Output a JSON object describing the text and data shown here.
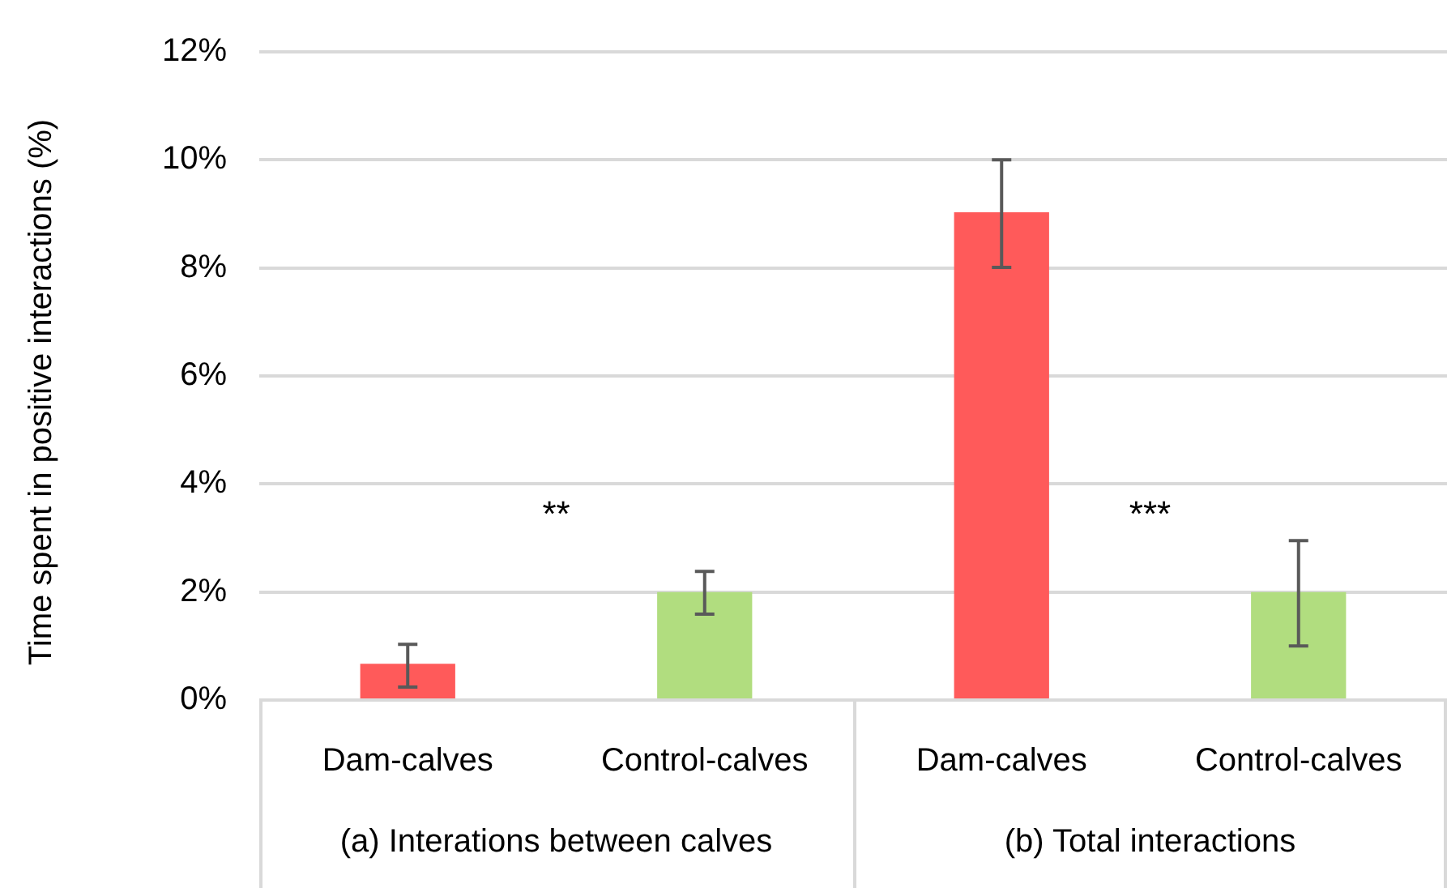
{
  "chart_data": {
    "type": "bar",
    "ylabel": "Time spent in positive interactions (%)",
    "categories": [
      "Dam-calves",
      "Control-calves",
      "Dam-calves",
      "Control-calves"
    ],
    "values": [
      0.67,
      2.0,
      9.03,
      2.0
    ],
    "colors": [
      "#ff5a5a",
      "#b1dd7f",
      "#ff5a5a",
      "#b1dd7f"
    ],
    "errors": [
      [
        0.24,
        1.03
      ],
      [
        1.59,
        2.38
      ],
      [
        8.01,
        10.0
      ],
      [
        1.0,
        2.95
      ]
    ],
    "ylim": [
      0,
      12
    ],
    "yticks": [
      {
        "value": 0,
        "label": "0%"
      },
      {
        "value": 2,
        "label": "2%"
      },
      {
        "value": 4,
        "label": "4%"
      },
      {
        "value": 6,
        "label": "6%"
      },
      {
        "value": 8,
        "label": "8%"
      },
      {
        "value": 10,
        "label": "10%"
      },
      {
        "value": 12,
        "label": "12%"
      }
    ],
    "grid": "y",
    "annotations": [
      "(a) Interations between calves",
      "(b) Total interactions",
      "**",
      "***"
    ]
  }
}
